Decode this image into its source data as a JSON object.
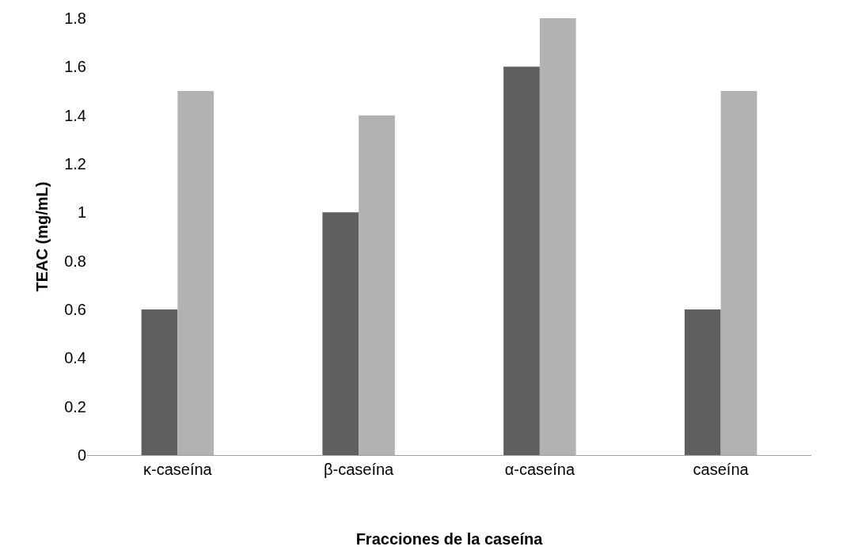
{
  "chart_data": {
    "type": "bar",
    "xlabel": "Fracciones de la caseína",
    "ylabel": "TEAC (mg/mL)",
    "categories": [
      "κ-caseína",
      "β-caseína",
      "α-caseína",
      "caseína"
    ],
    "series": [
      {
        "color": "#5f5f5f",
        "values": [
          0.6,
          1.0,
          1.6,
          0.6
        ]
      },
      {
        "color": "#b2b2b2",
        "values": [
          1.5,
          1.4,
          1.8,
          1.5
        ]
      }
    ],
    "ylim": [
      0,
      1.8
    ],
    "yticks": [
      0,
      0.2,
      0.4,
      0.6,
      0.8,
      1,
      1.2,
      1.4,
      1.6,
      1.8
    ],
    "grid": false,
    "legend": false
  }
}
